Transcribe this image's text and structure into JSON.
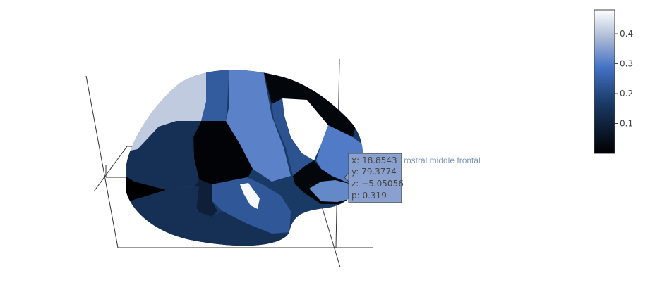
{
  "chart_data": {
    "type": "mesh3d",
    "colorscale": [
      {
        "stop": 0.0,
        "color": "#000000"
      },
      {
        "stop": 0.35,
        "color": "#1a3a66"
      },
      {
        "stop": 0.6,
        "color": "#4472c4"
      },
      {
        "stop": 0.8,
        "color": "#a8b8d4"
      },
      {
        "stop": 1.0,
        "color": "#ffffff"
      }
    ],
    "colorbar": {
      "range": [
        0,
        0.48
      ],
      "ticks": [
        0.1,
        0.2,
        0.3,
        0.4
      ],
      "tick_labels": [
        "0.1",
        "0.2",
        "0.3",
        "0.4"
      ]
    },
    "regions": [
      {
        "id": "r-superior-frontal",
        "p": 0.41
      },
      {
        "id": "r-caudal-mid-frontal",
        "p": 0.24
      },
      {
        "id": "r-precentral",
        "p": 0.31
      },
      {
        "id": "r-postcentral",
        "p": 0.02
      },
      {
        "id": "r-superior-parietal",
        "p": 0.48
      },
      {
        "id": "r-lateral-occipital",
        "p": 0.3
      },
      {
        "id": "r-inferior-parietal",
        "p": 0.22
      },
      {
        "id": "r-supramarginal",
        "p": 0.01
      },
      {
        "id": "r-superior-temporal",
        "p": 0.23
      },
      {
        "id": "r-temporal-patch",
        "p": 0.47
      },
      {
        "id": "r-middle-temporal",
        "p": 0.09
      },
      {
        "id": "r-inferior-temporal",
        "p": 0.14
      },
      {
        "id": "r-pars",
        "p": 0.14
      },
      {
        "id": "r-orbitofrontal",
        "p": 0.0
      },
      {
        "id": "r-insula",
        "p": 0.02
      },
      {
        "id": "r-rostral-middle-frontal",
        "p": 0.319
      }
    ],
    "hover": {
      "name": "rostral middle frontal",
      "lines": [
        "x: 18.8543",
        "y: 79.3774",
        "z: −5.05056",
        "p: 0.319"
      ],
      "p": 0.319
    }
  }
}
